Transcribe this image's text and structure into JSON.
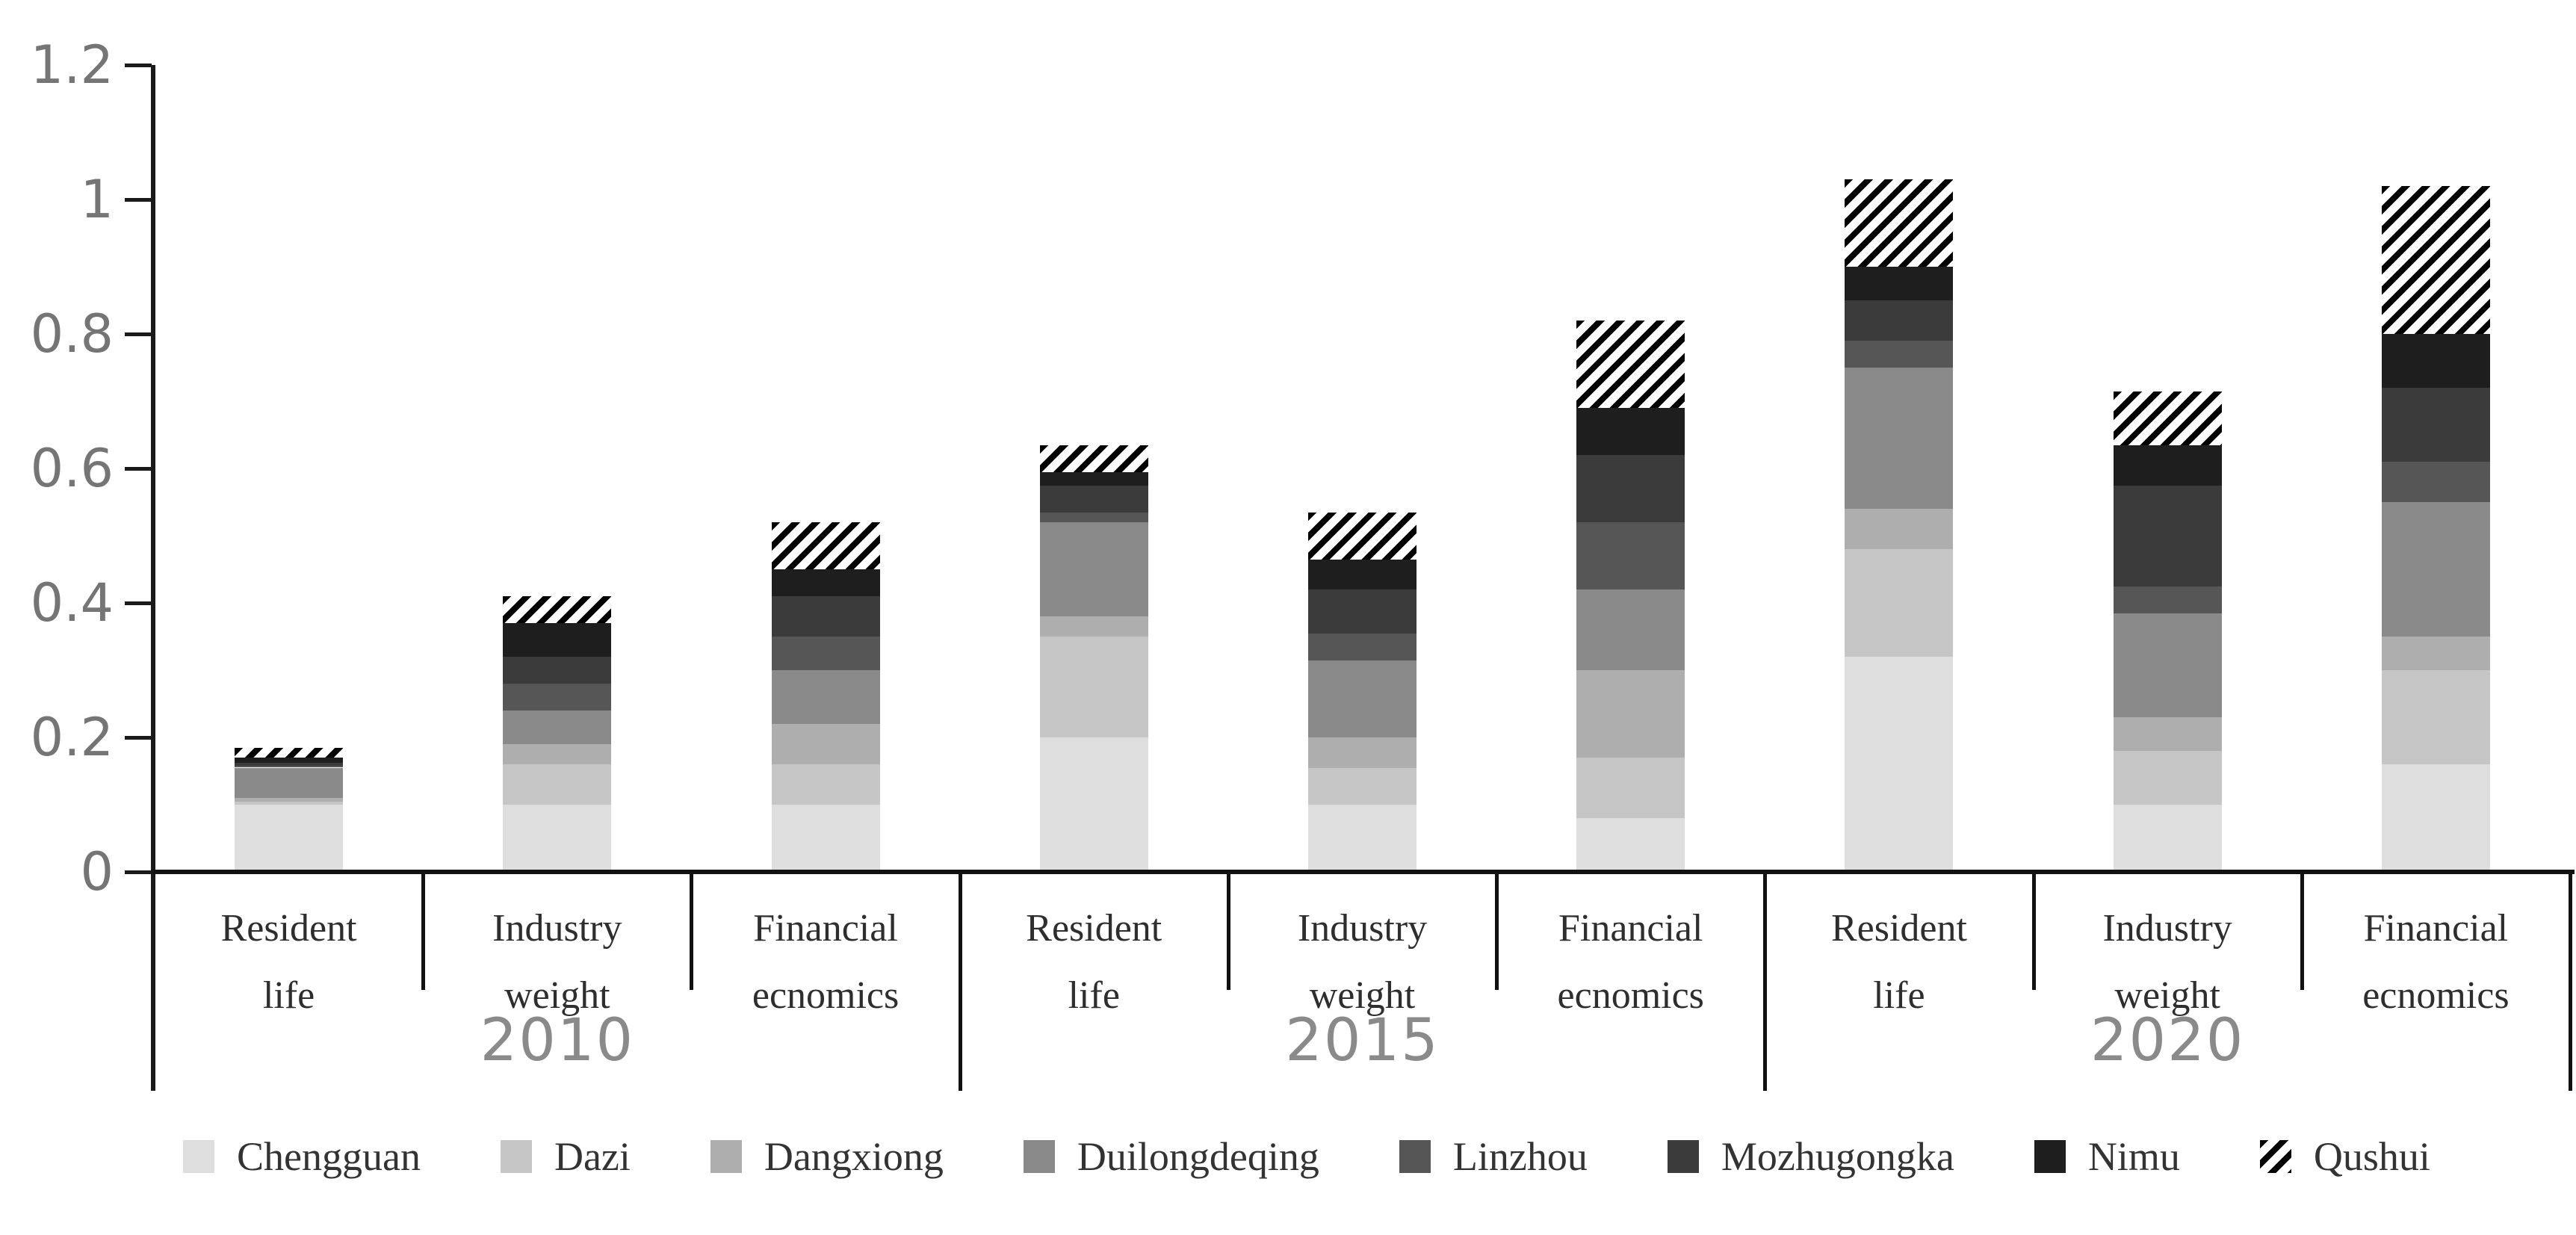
{
  "figure": {
    "background": "#ffffff",
    "axis_color": "#1a1a1a",
    "tick_label_color": "#757575",
    "year_label_color": "#8a8a8a",
    "category_label_color": "#2e2e2e"
  },
  "chart_data": {
    "type": "bar",
    "stacked": true,
    "grid": false,
    "title": "",
    "xlabel": "",
    "ylabel": "",
    "ylim": [
      0,
      1.2
    ],
    "ytick_labels": [
      "0",
      "0.2",
      "0.4",
      "0.6",
      "0.8",
      "1",
      "1.2"
    ],
    "legend_position": "bottom",
    "group_years": [
      "2010",
      "2015",
      "2020"
    ],
    "categories": [
      "Resident life",
      "Industry weight",
      "Financial ecnomics",
      "Resident life",
      "Industry weight",
      "Financial ecnomics",
      "Resident life",
      "Industry weight",
      "Financial ecnomics"
    ],
    "bar_totals_approx": [
      0.18,
      0.41,
      0.52,
      0.63,
      0.53,
      0.82,
      1.03,
      0.71,
      1.02
    ],
    "series": [
      {
        "name": "Chengguan",
        "color": "#dedede",
        "values": [
          0.1,
          0.1,
          0.1,
          0.2,
          0.1,
          0.08,
          0.32,
          0.1,
          0.16
        ]
      },
      {
        "name": "Dazi",
        "color": "#c6c6c6",
        "values": [
          0.005,
          0.06,
          0.06,
          0.15,
          0.055,
          0.09,
          0.16,
          0.08,
          0.14
        ]
      },
      {
        "name": "Dangxiong",
        "color": "#aeaeae",
        "values": [
          0.005,
          0.03,
          0.06,
          0.03,
          0.045,
          0.13,
          0.06,
          0.05,
          0.05
        ]
      },
      {
        "name": "Duilongdeqing",
        "color": "#8a8a8a",
        "values": [
          0.045,
          0.05,
          0.08,
          0.14,
          0.115,
          0.12,
          0.21,
          0.155,
          0.2
        ]
      },
      {
        "name": "Linzhou",
        "color": "#565656",
        "values": [
          0.003,
          0.04,
          0.05,
          0.015,
          0.04,
          0.1,
          0.04,
          0.04,
          0.06
        ]
      },
      {
        "name": "Mozhugongka",
        "color": "#3b3b3b",
        "values": [
          0.004,
          0.04,
          0.06,
          0.04,
          0.065,
          0.1,
          0.06,
          0.15,
          0.11
        ]
      },
      {
        "name": "Nimu",
        "color": "#1e1e1e",
        "values": [
          0.008,
          0.05,
          0.04,
          0.02,
          0.045,
          0.07,
          0.05,
          0.06,
          0.08
        ]
      },
      {
        "name": "Qushui",
        "color": "hatch",
        "values": [
          0.015,
          0.04,
          0.07,
          0.04,
          0.07,
          0.13,
          0.13,
          0.08,
          0.22
        ]
      }
    ]
  }
}
